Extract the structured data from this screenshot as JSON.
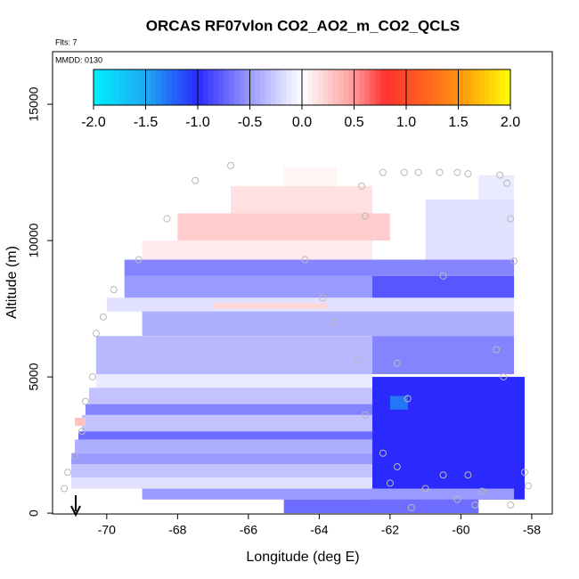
{
  "chart_data": {
    "type": "heatmap",
    "title": "ORCAS RF07vlon CO2_AO2_m_CO2_QCLS",
    "annotations": [
      "Flts: 7",
      "MMDD: 0130"
    ],
    "x_label": "Longitude (deg E)",
    "y_label": "Altitude (m)",
    "xlim": [
      -71.53,
      -57.42
    ],
    "ylim": [
      -30,
      16930
    ],
    "xticks": [
      -70,
      -68,
      -66,
      -64,
      -62,
      -60,
      -58
    ],
    "yticks": [
      0,
      5000,
      10000,
      15000
    ],
    "colorbar": {
      "lim": [
        -2,
        2
      ],
      "ticks": [
        {
          "value": -2,
          "label": "-2.0"
        },
        {
          "value": -1.5,
          "label": "-1.5"
        },
        {
          "value": -1,
          "label": "-1.0"
        },
        {
          "value": -0.5,
          "label": "-0.5"
        },
        {
          "value": 0,
          "label": "0.0"
        },
        {
          "value": 0.5,
          "label": "0.5"
        },
        {
          "value": 1,
          "label": "1.0"
        },
        {
          "value": 1.5,
          "label": "1.5"
        },
        {
          "value": 2,
          "label": "2.0"
        }
      ],
      "stops": [
        [
          -2,
          "#00f0ff"
        ],
        [
          -1.5,
          "#1ea8f0"
        ],
        [
          -1,
          "#2a2aff"
        ],
        [
          -0.5,
          "#9a9aff"
        ],
        [
          0,
          "#ffffff"
        ],
        [
          0.5,
          "#ff9a9a"
        ],
        [
          0.8,
          "#ff3030"
        ],
        [
          1.5,
          "#ff9010"
        ],
        [
          2,
          "#ffff00"
        ]
      ]
    },
    "cells": [
      [
        -69,
        -62.5,
        9300,
        10000,
        0.1
      ],
      [
        -68,
        -62,
        10000,
        11000,
        0.25
      ],
      [
        -66.5,
        -62.5,
        11000,
        12000,
        0.15
      ],
      [
        -65,
        -63.5,
        12000,
        12700,
        0.05
      ],
      [
        -61,
        -58.5,
        9300,
        11500,
        -0.15
      ],
      [
        -59.5,
        -58.5,
        11500,
        12400,
        -0.1
      ],
      [
        -69.5,
        -58.5,
        8700,
        9300,
        -0.6
      ],
      [
        -69.5,
        -62.5,
        7900,
        8700,
        -0.5
      ],
      [
        -62.5,
        -58.5,
        7900,
        8700,
        -0.8
      ],
      [
        -70,
        -58.5,
        7400,
        7900,
        -0.15
      ],
      [
        -67,
        -63.8,
        7500,
        7700,
        0.2
      ],
      [
        -69,
        -58.5,
        6500,
        7400,
        -0.4
      ],
      [
        -70.3,
        -62.5,
        5100,
        6500,
        -0.35
      ],
      [
        -62.5,
        -58.5,
        5100,
        6500,
        -0.6
      ],
      [
        -70.3,
        -62.5,
        4600,
        5100,
        -0.1
      ],
      [
        -70.5,
        -62.5,
        4000,
        4600,
        -0.3
      ],
      [
        -70.6,
        -62.5,
        3600,
        4000,
        -0.6
      ],
      [
        -70.7,
        -62.5,
        3000,
        3600,
        -0.3
      ],
      [
        -70.8,
        -62.5,
        2700,
        3000,
        -0.7
      ],
      [
        -70.9,
        -62.5,
        2200,
        2700,
        -0.4
      ],
      [
        -71,
        -62.5,
        1800,
        2200,
        -0.5
      ],
      [
        -71,
        -62.5,
        1300,
        1800,
        -0.3
      ],
      [
        -71,
        -62.5,
        900,
        1300,
        -0.15
      ],
      [
        -62.5,
        -58.2,
        500,
        5000,
        -1.0
      ],
      [
        -69,
        -58.5,
        500,
        900,
        -0.5
      ],
      [
        -65,
        -59.5,
        0,
        500,
        -0.7
      ],
      [
        -62,
        -61.5,
        3800,
        4300,
        -1.3
      ],
      [
        -70.9,
        -70.6,
        3200,
        3500,
        0.3
      ]
    ],
    "points": [
      [
        -66.5,
        12750
      ],
      [
        -67.5,
        12200
      ],
      [
        -62.8,
        12000
      ],
      [
        -62.2,
        12500
      ],
      [
        -61.6,
        12500
      ],
      [
        -61.2,
        12500
      ],
      [
        -60.6,
        12500
      ],
      [
        -60.1,
        12500
      ],
      [
        -59.8,
        12450
      ],
      [
        -58.9,
        12400
      ],
      [
        -58.7,
        12100
      ],
      [
        -62.7,
        10900
      ],
      [
        -68.3,
        10800
      ],
      [
        -58.6,
        10800
      ],
      [
        -69.1,
        9300
      ],
      [
        -64.4,
        9300
      ],
      [
        -58.5,
        9250
      ],
      [
        -69.8,
        8200
      ],
      [
        -63.9,
        7900
      ],
      [
        -60.5,
        8700
      ],
      [
        -70.1,
        7200
      ],
      [
        -63.6,
        7000
      ],
      [
        -70.3,
        6600
      ],
      [
        -59,
        6000
      ],
      [
        -62.9,
        5600
      ],
      [
        -61.8,
        5500
      ],
      [
        -70.4,
        5000
      ],
      [
        -58.8,
        5000
      ],
      [
        -61.5,
        4200
      ],
      [
        -70.6,
        4100
      ],
      [
        -62.7,
        3600
      ],
      [
        -70.7,
        3000
      ],
      [
        -62.2,
        2200
      ],
      [
        -70.9,
        2100
      ],
      [
        -61.8,
        1700
      ],
      [
        -60.5,
        1400
      ],
      [
        -59.8,
        1400
      ],
      [
        -58.2,
        1500
      ],
      [
        -71.1,
        1500
      ],
      [
        -62,
        1100
      ],
      [
        -61,
        900
      ],
      [
        -59.4,
        800
      ],
      [
        -58.1,
        1000
      ],
      [
        -71.2,
        900
      ],
      [
        -60.1,
        500
      ],
      [
        -61.4,
        200
      ],
      [
        -59.6,
        300
      ],
      [
        -58.6,
        300
      ]
    ]
  }
}
